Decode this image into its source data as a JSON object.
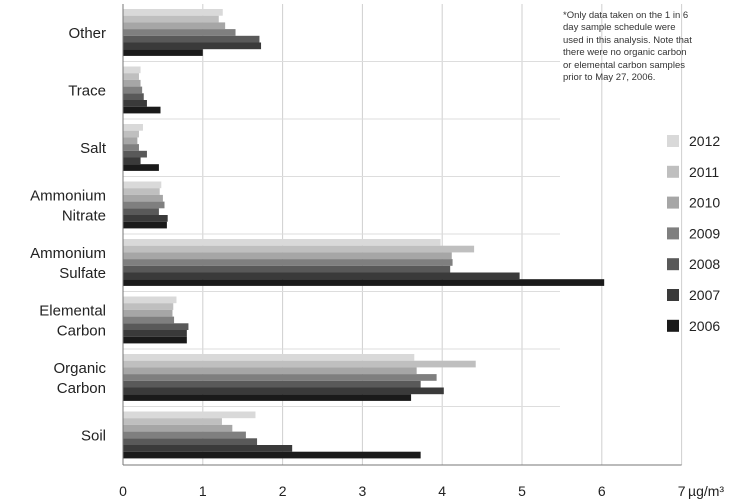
{
  "chart_data": {
    "type": "bar",
    "orientation": "horizontal",
    "categories": [
      "Other",
      "Trace",
      "Salt",
      "Ammonium Nitrate",
      "Ammonium Sulfate",
      "Elemental Carbon",
      "Organic Carbon",
      "Soil"
    ],
    "category_label_lines": [
      [
        "Other"
      ],
      [
        "Trace"
      ],
      [
        "Salt"
      ],
      [
        "Ammonium",
        "Nitrate"
      ],
      [
        "Ammonium",
        "Sulfate"
      ],
      [
        "Elemental",
        "Carbon"
      ],
      [
        "Organic",
        "Carbon"
      ],
      [
        "Soil"
      ]
    ],
    "series": [
      {
        "name": "2012",
        "color": "#d9d9d9",
        "values": [
          1.25,
          0.22,
          0.25,
          0.48,
          3.98,
          0.67,
          3.65,
          1.66
        ]
      },
      {
        "name": "2011",
        "color": "#bfbfbf",
        "values": [
          1.2,
          0.2,
          0.2,
          0.46,
          4.4,
          0.63,
          4.42,
          1.24
        ]
      },
      {
        "name": "2010",
        "color": "#a6a6a6",
        "values": [
          1.28,
          0.22,
          0.18,
          0.5,
          4.12,
          0.62,
          3.68,
          1.37
        ]
      },
      {
        "name": "2009",
        "color": "#7f7f7f",
        "values": [
          1.41,
          0.24,
          0.2,
          0.52,
          4.13,
          0.64,
          3.93,
          1.54
        ]
      },
      {
        "name": "2008",
        "color": "#595959",
        "values": [
          1.71,
          0.26,
          0.3,
          0.45,
          4.1,
          0.82,
          3.73,
          1.68
        ]
      },
      {
        "name": "2007",
        "color": "#3a3a3a",
        "values": [
          1.73,
          0.3,
          0.22,
          0.56,
          4.97,
          0.8,
          4.02,
          2.12
        ]
      },
      {
        "name": "2006",
        "color": "#1a1a1a",
        "values": [
          1.0,
          0.47,
          0.45,
          0.55,
          6.03,
          0.8,
          3.61,
          3.73
        ]
      }
    ],
    "legend_order": [
      "2012",
      "2011",
      "2010",
      "2009",
      "2008",
      "2007",
      "2006"
    ],
    "legend_position": "right",
    "x_ticks": [
      0,
      1,
      2,
      3,
      4,
      5,
      6,
      7
    ],
    "xlim": [
      0,
      7
    ],
    "xlabel": "",
    "unit": "µg/m³",
    "ylabel": "",
    "title": "",
    "grid": "vertical",
    "note_lines": [
      "*Only data  taken on the 1 in 6",
      "day sample schedule were",
      "used in this analysis.  Note that",
      "there were no organic carbon",
      "or elemental carbon samples",
      "prior to May 27, 2006."
    ]
  }
}
